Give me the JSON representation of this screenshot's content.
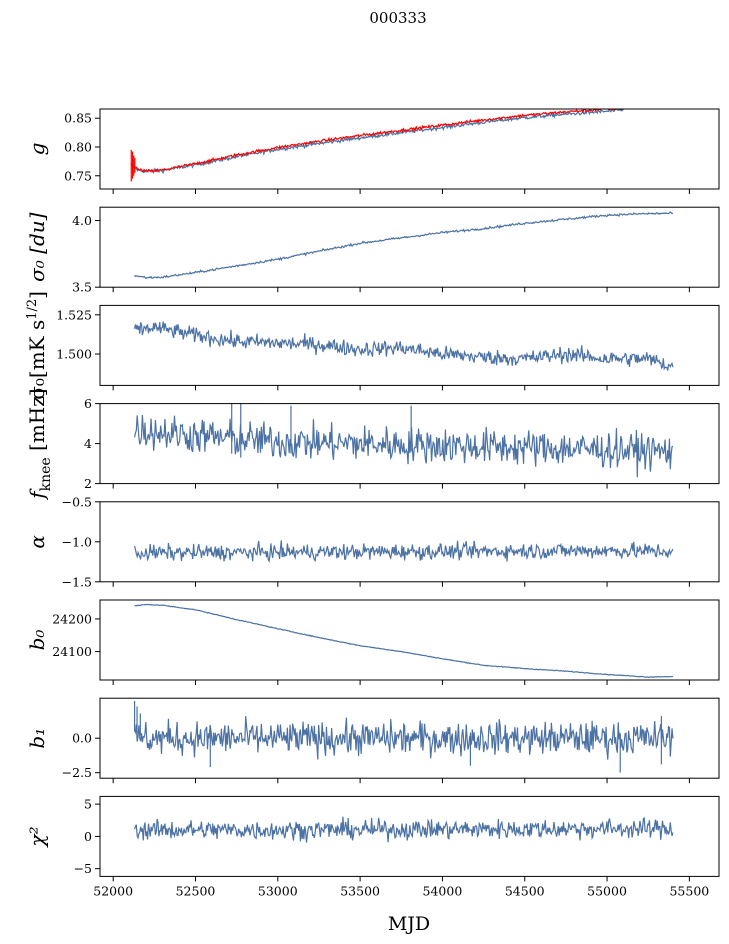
{
  "figure": {
    "title": "000333",
    "xlabel": "MJD",
    "x_ticks": [
      "52000",
      "52500",
      "53000",
      "53500",
      "54000",
      "54500",
      "55000",
      "55500"
    ]
  },
  "colors": {
    "series": "#4c72a4",
    "highlight": "#ff0000",
    "axes": "#000000"
  },
  "chart_data": [
    {
      "type": "line",
      "id": "g",
      "ylabel": "g",
      "xlim": [
        51920,
        55680
      ],
      "ylim": [
        0.727,
        0.866
      ],
      "y_ticks": [
        {
          "v": 0.85,
          "label": "0.85"
        },
        {
          "v": 0.8,
          "label": "0.80"
        },
        {
          "v": 0.75,
          "label": "0.75"
        }
      ],
      "series": [
        {
          "color": "#4c72a4",
          "noise": 0.0015,
          "points": [
            [
              52110,
              0.768
            ],
            [
              52150,
              0.76
            ],
            [
              52200,
              0.757
            ],
            [
              52300,
              0.759
            ],
            [
              52500,
              0.769
            ],
            [
              52750,
              0.783
            ],
            [
              53000,
              0.796
            ],
            [
              53250,
              0.806
            ],
            [
              53500,
              0.816
            ],
            [
              53750,
              0.825
            ],
            [
              54000,
              0.834
            ],
            [
              54250,
              0.843
            ],
            [
              54500,
              0.851
            ],
            [
              54750,
              0.857
            ],
            [
              55000,
              0.862
            ],
            [
              55100,
              0.864
            ]
          ]
        },
        {
          "color": "#ff0000",
          "noise": 0.0012,
          "points": [
            [
              52110,
              0.77
            ],
            [
              52150,
              0.761
            ],
            [
              52200,
              0.758
            ],
            [
              52300,
              0.76
            ],
            [
              52500,
              0.771
            ],
            [
              52750,
              0.786
            ],
            [
              53000,
              0.799
            ],
            [
              53250,
              0.81
            ],
            [
              53500,
              0.82
            ],
            [
              53750,
              0.829
            ],
            [
              54000,
              0.838
            ],
            [
              54250,
              0.847
            ],
            [
              54500,
              0.855
            ],
            [
              54750,
              0.861
            ],
            [
              55000,
              0.866
            ],
            [
              55100,
              0.867
            ]
          ],
          "spikes": [
            [
              52110,
              0.74,
              0.795
            ],
            [
              52118,
              0.745,
              0.792
            ],
            [
              52125,
              0.75,
              0.785
            ],
            [
              52132,
              0.755,
              0.781
            ]
          ]
        }
      ]
    },
    {
      "type": "line",
      "id": "sigma0-du",
      "ylabel": "σ₀ [du]",
      "xlim": [
        51920,
        55680
      ],
      "ylim": [
        3.5,
        4.1
      ],
      "y_ticks": [
        {
          "v": 4.0,
          "label": "4.0"
        },
        {
          "v": 3.5,
          "label": "3.5"
        }
      ],
      "series": [
        {
          "color": "#4c72a4",
          "noise": 0.004,
          "points": [
            [
              52130,
              3.587
            ],
            [
              52200,
              3.572
            ],
            [
              52300,
              3.575
            ],
            [
              52500,
              3.61
            ],
            [
              52750,
              3.66
            ],
            [
              53000,
              3.71
            ],
            [
              53250,
              3.77
            ],
            [
              53500,
              3.83
            ],
            [
              53750,
              3.87
            ],
            [
              54000,
              3.91
            ],
            [
              54250,
              3.94
            ],
            [
              54500,
              3.98
            ],
            [
              54750,
              4.01
            ],
            [
              55000,
              4.04
            ],
            [
              55200,
              4.05
            ],
            [
              55400,
              4.055
            ]
          ]
        }
      ]
    },
    {
      "type": "line",
      "id": "sigma0-mk",
      "ylabel": "σ₀[mK s^1/2]",
      "xlim": [
        51920,
        55680
      ],
      "ylim": [
        1.48,
        1.531
      ],
      "y_ticks": [
        {
          "v": 1.525,
          "label": "1.525"
        },
        {
          "v": 1.5,
          "label": "1.500"
        }
      ],
      "series": [
        {
          "color": "#4c72a4",
          "noise": 0.0025,
          "points": [
            [
              52130,
              1.515
            ],
            [
              52250,
              1.517
            ],
            [
              52500,
              1.512
            ],
            [
              52750,
              1.508
            ],
            [
              53000,
              1.507
            ],
            [
              53250,
              1.506
            ],
            [
              53500,
              1.503
            ],
            [
              53750,
              1.504
            ],
            [
              54000,
              1.5
            ],
            [
              54250,
              1.498
            ],
            [
              54500,
              1.497
            ],
            [
              54750,
              1.5
            ],
            [
              55000,
              1.497
            ],
            [
              55250,
              1.497
            ],
            [
              55400,
              1.492
            ]
          ]
        }
      ]
    },
    {
      "type": "line",
      "id": "fknee",
      "ylabel": "f_knee [mHz]",
      "xlim": [
        51920,
        55680
      ],
      "ylim": [
        2,
        6
      ],
      "y_ticks": [
        {
          "v": 6,
          "label": "6"
        },
        {
          "v": 4,
          "label": "4"
        },
        {
          "v": 2,
          "label": "2"
        }
      ],
      "series": [
        {
          "color": "#4c72a4",
          "noise": 0.45,
          "points": [
            [
              52130,
              4.7
            ],
            [
              52500,
              4.4
            ],
            [
              53000,
              4.1
            ],
            [
              53500,
              4.0
            ],
            [
              54000,
              3.9
            ],
            [
              54500,
              3.8
            ],
            [
              55000,
              3.7
            ],
            [
              55400,
              3.6
            ]
          ],
          "spikes": [
            [
              52720,
              3.5,
              6.0
            ],
            [
              52775,
              3.3,
              6.0
            ],
            [
              53080,
              3.5,
              5.9
            ],
            [
              53810,
              3.6,
              5.9
            ]
          ]
        }
      ]
    },
    {
      "type": "line",
      "id": "alpha",
      "ylabel": "α",
      "xlim": [
        51920,
        55680
      ],
      "ylim": [
        -1.5,
        -0.5
      ],
      "y_ticks": [
        {
          "v": -0.5,
          "label": "−0.5"
        },
        {
          "v": -1.0,
          "label": "−1.0"
        },
        {
          "v": -1.5,
          "label": "−1.5"
        }
      ],
      "series": [
        {
          "color": "#4c72a4",
          "noise": 0.05,
          "points": [
            [
              52130,
              -1.14
            ],
            [
              53000,
              -1.13
            ],
            [
              54000,
              -1.12
            ],
            [
              55000,
              -1.11
            ],
            [
              55400,
              -1.12
            ]
          ]
        }
      ]
    },
    {
      "type": "line",
      "id": "b0",
      "ylabel": "b₀",
      "xlim": [
        51920,
        55680
      ],
      "ylim": [
        24013,
        24258
      ],
      "y_ticks": [
        {
          "v": 24200,
          "label": "24200"
        },
        {
          "v": 24100,
          "label": "24100"
        }
      ],
      "series": [
        {
          "color": "#4c72a4",
          "noise": 0.6,
          "points": [
            [
              52130,
              24240
            ],
            [
              52200,
              24244
            ],
            [
              52300,
              24242
            ],
            [
              52500,
              24228
            ],
            [
              52750,
              24198
            ],
            [
              53000,
              24170
            ],
            [
              53250,
              24143
            ],
            [
              53500,
              24118
            ],
            [
              53750,
              24100
            ],
            [
              54000,
              24078
            ],
            [
              54250,
              24058
            ],
            [
              54500,
              24048
            ],
            [
              54750,
              24040
            ],
            [
              55000,
              24030
            ],
            [
              55250,
              24022
            ],
            [
              55400,
              24024
            ]
          ]
        }
      ]
    },
    {
      "type": "line",
      "id": "b1",
      "ylabel": "b₁",
      "xlim": [
        51920,
        55680
      ],
      "ylim": [
        -2.9,
        2.9
      ],
      "y_ticks": [
        {
          "v": 0.0,
          "label": "0.0"
        },
        {
          "v": -2.5,
          "label": "−2.5"
        }
      ],
      "series": [
        {
          "color": "#4c72a4",
          "noise": 0.6,
          "points": [
            [
              52130,
              0
            ],
            [
              53000,
              0
            ],
            [
              54000,
              0
            ],
            [
              55000,
              0
            ],
            [
              55400,
              0
            ]
          ],
          "spikes": [
            [
              52130,
              0.5,
              2.7
            ],
            [
              52145,
              0.3,
              2.3
            ],
            [
              52165,
              0.2,
              1.8
            ],
            [
              52590,
              -2.1,
              0.5
            ],
            [
              54170,
              -2.0,
              0.4
            ],
            [
              55080,
              -2.5,
              0.3
            ],
            [
              55330,
              -1.9,
              1.6
            ]
          ]
        }
      ]
    },
    {
      "type": "line",
      "id": "chi2",
      "ylabel": "χ²",
      "xlim": [
        51920,
        55680
      ],
      "ylim": [
        -6.2,
        6.2
      ],
      "y_ticks": [
        {
          "v": 5,
          "label": "5"
        },
        {
          "v": 0,
          "label": "0"
        },
        {
          "v": -5,
          "label": "−5"
        }
      ],
      "series": [
        {
          "color": "#4c72a4",
          "noise": 0.75,
          "points": [
            [
              52130,
              1.0
            ],
            [
              53000,
              1.0
            ],
            [
              54000,
              1.1
            ],
            [
              55000,
              1.2
            ],
            [
              55400,
              1.2
            ]
          ]
        }
      ]
    }
  ]
}
